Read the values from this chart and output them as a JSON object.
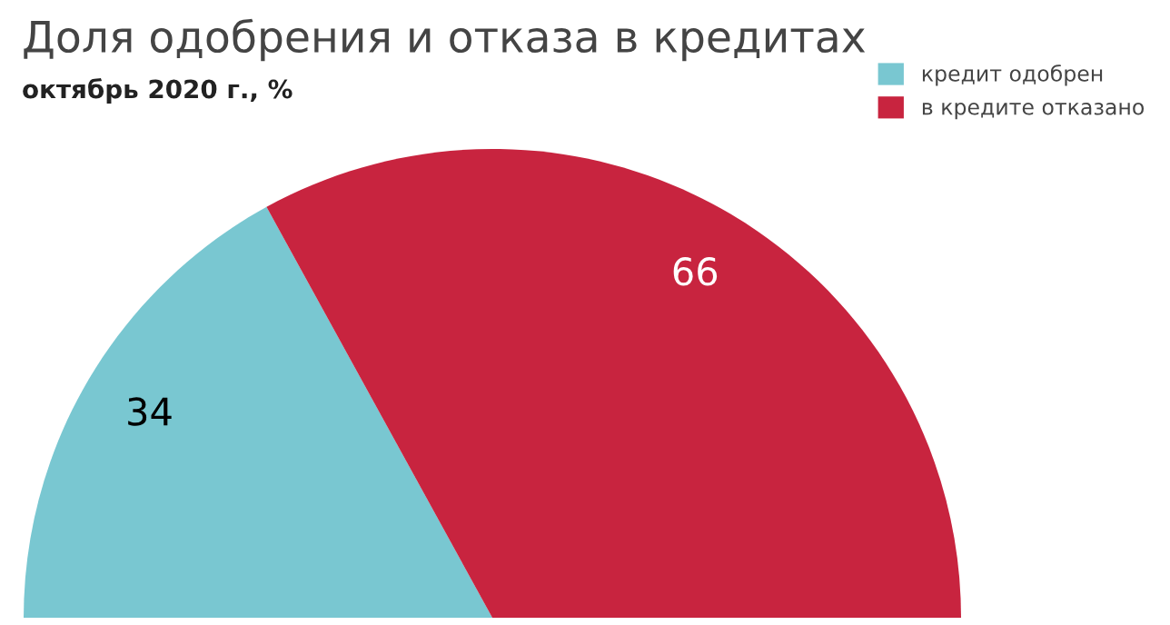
{
  "chart_data": {
    "type": "pie",
    "title": "Доля одобрения и отказа в кредитах",
    "subtitle": "октябрь 2020 г., %",
    "categories": [
      "кредит одобрен",
      "в кредите отказано"
    ],
    "values": [
      34,
      66
    ],
    "colors": [
      "#79c7d1",
      "#c8243f"
    ],
    "data_labels": true,
    "legend": "top right"
  }
}
